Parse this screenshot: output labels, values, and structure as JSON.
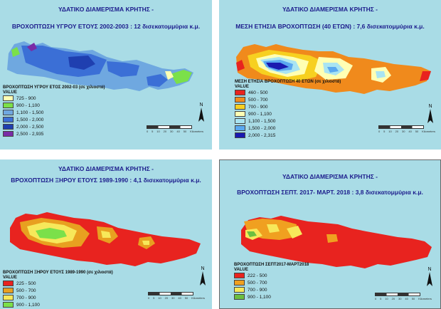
{
  "panels": [
    {
      "title": "ΥΔΑΤΙΚΟ ΔΙΑΜΕΡΙΣΜΑ ΚΡΗΤΗΣ -",
      "subtitle": "ΒΡΟΧΟΠΤΩΣΗ ΥΓΡΟΥ ΕΤΟΥΣ 2002-2003 : 12  δισεκατομμύρια κ.μ.",
      "legend_title": "ΒΡΟΧΟΠΤΩΣΗ ΥΓΡΟΥ ΕΤΟΣ 2002-03 (σε χιλιοστά)",
      "value_label": "VALUE",
      "classes": [
        {
          "range": "725 - 900",
          "color": "#ffffb4"
        },
        {
          "range": "900 - 1,100",
          "color": "#7be04a"
        },
        {
          "range": "1,100 - 1,500",
          "color": "#6fa8e0"
        },
        {
          "range": "1,500 - 2,000",
          "color": "#3b6fd6"
        },
        {
          "range": "2,000 - 2,500",
          "color": "#1f3fb0"
        },
        {
          "range": "2,500 - 2,935",
          "color": "#7a2ca6"
        }
      ]
    },
    {
      "title": "ΥΔΑΤΙΚΟ ΔΙΑΜΕΡΙΣΜΑ ΚΡΗΤΗΣ -",
      "subtitle": "ΜΕΣΗ ΕΤΗΣΙΑ ΒΡΟΧΟΠΤΩΣΗ (40 ΕΤΩΝ)  : 7,6 δισεκατομμύρια κ.μ.",
      "legend_title": "ΜΕΣΗ ΕΤΗΣΙΑ ΒΡΟΧΟΠΤΩΣΗ 40 ΕΤΩΝ (σε χιλιοστά)",
      "value_label": "VALUE",
      "classes": [
        {
          "range": "460 - 500",
          "color": "#e8231f"
        },
        {
          "range": "500 - 700",
          "color": "#f08a1c"
        },
        {
          "range": "700 - 900",
          "color": "#f7d020"
        },
        {
          "range": "900 - 1,100",
          "color": "#ffffb4"
        },
        {
          "range": "1,100 - 1,500",
          "color": "#a9e4f2"
        },
        {
          "range": "1,500 - 2,000",
          "color": "#5aa8f0"
        },
        {
          "range": "2,000 - 2,315",
          "color": "#1a1ab0"
        }
      ]
    },
    {
      "title": "ΥΔΑΤΙΚΟ ΔΙΑΜΕΡΙΣΜΑ ΚΡΗΤΗΣ -",
      "subtitle": "ΒΡΟΧΟΠΤΩΣΗ ΞΗΡΟΥ ΕΤΟΥΣ 1989-1990 : 4,1 δισεκατομμύρια κ.μ.",
      "legend_title": "ΒΡΟΧΟΠΤΩΣΗ ΞΗΡΟΥ ΕΤΟΥΣ 1989-1990 (σε χιλιοστά)",
      "value_label": "VALUE",
      "classes": [
        {
          "range": "225 - 500",
          "color": "#e8231f"
        },
        {
          "range": "500 - 700",
          "color": "#e8a020"
        },
        {
          "range": "700 - 900",
          "color": "#f7e85a"
        },
        {
          "range": "900 - 1,100",
          "color": "#7be04a"
        }
      ]
    },
    {
      "title": "ΥΔΑΤΙΚΟ ΔΙΑΜΕΡΙΣΜΑ ΚΡΗΤΗΣ -",
      "subtitle": "ΒΡΟΧΟΠΤΩΣΗ ΣΕΠΤ. 2017- ΜΑΡΤ. 2018 : 3,8 δισεκατομμύρια κ.μ.",
      "legend_title": "ΒΡΟΧΟΠΤΩΣΗ ΣΕΠΤ2017-ΜΑΡΤ2018",
      "value_label": "VALUE",
      "classes": [
        {
          "range": "222 - 500",
          "color": "#e8231f"
        },
        {
          "range": "500 - 700",
          "color": "#f0a020"
        },
        {
          "range": "700 - 900",
          "color": "#f7e85a"
        },
        {
          "range": "900 - 1,100",
          "color": "#6cc040"
        }
      ]
    }
  ],
  "north_label": "N",
  "scale_labels": [
    "0",
    "5",
    "10",
    "20",
    "30",
    "40",
    "50",
    "Kilometers"
  ]
}
